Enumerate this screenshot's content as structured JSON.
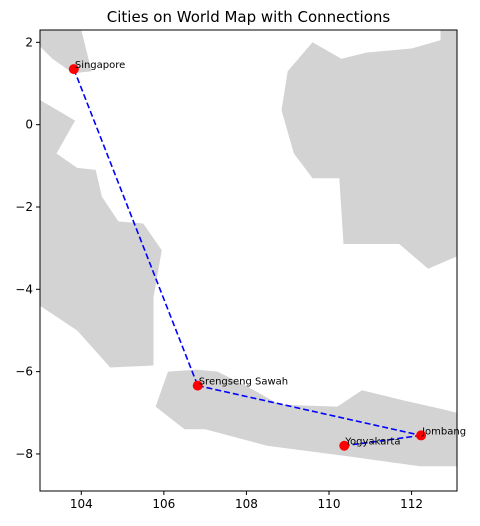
{
  "chart_data": {
    "type": "scatter",
    "title": "Cities on World Map with Connections",
    "xlabel": "",
    "ylabel": "",
    "xlim": [
      103.0,
      113.1
    ],
    "ylim": [
      -8.9,
      2.3
    ],
    "x_ticks": [
      104,
      106,
      108,
      110,
      112
    ],
    "y_ticks": [
      2,
      0,
      -2,
      -4,
      -6,
      -8
    ],
    "grid": false,
    "land_color": "#d3d3d3",
    "marker_color": "#ff0000",
    "line_color": "#0000ff",
    "line_style": "dashed",
    "cities": [
      {
        "name": "Singapore",
        "x": 103.82,
        "y": 1.35
      },
      {
        "name": "Srengseng Sawah",
        "x": 106.82,
        "y": -6.34
      },
      {
        "name": "Jombang",
        "x": 112.23,
        "y": -7.55
      },
      {
        "name": "Yogyakarta",
        "x": 110.37,
        "y": -7.8
      }
    ],
    "connections": [
      [
        0,
        1
      ],
      [
        1,
        2
      ],
      [
        2,
        3
      ]
    ]
  }
}
